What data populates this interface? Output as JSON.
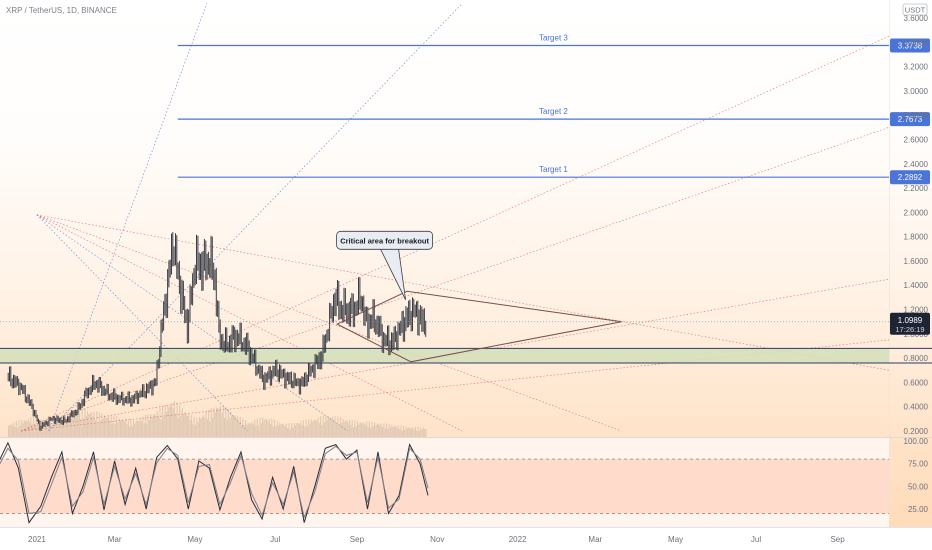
{
  "header": {
    "title": "XRP / TetherUS, 1D, BINANCE"
  },
  "colors": {
    "target_line": "#4a74d8",
    "support_band_fill": "#d4dfb8",
    "support_band_line": "#2c3a66",
    "price_label_bg": "#1e2433",
    "target_label_bg": "#4a74d8",
    "candle_color": "#3a3d45",
    "fib_red": "#e06a6a",
    "fib_blue": "#5a7fd0",
    "triangle_line": "#7a4e4a",
    "stoch_band_fill": "#ffc6b0"
  },
  "chart_data": [
    {
      "type": "line",
      "title": "XRP / TetherUS, 1D, BINANCE",
      "unit_label": "USDT",
      "y_axis": {
        "ticks": [
          "3.6000",
          "3.4000",
          "3.2000",
          "3.0000",
          "2.8000",
          "2.6000",
          "2.4000",
          "2.2000",
          "2.0000",
          "1.8000",
          "1.6000",
          "1.4000",
          "1.2000",
          "1.0000",
          "0.8000",
          "0.6000",
          "0.4000",
          "0.2000"
        ],
        "range": [
          0.15,
          3.72
        ]
      },
      "x_axis": {
        "ticks": [
          "2021",
          "Mar",
          "May",
          "Jul",
          "Sep",
          "Nov",
          "2022",
          "Mar",
          "May",
          "Jul",
          "Sep"
        ],
        "range": [
          "2020-12-04",
          "2022-10-10"
        ]
      },
      "last_price": {
        "value": "1.0989",
        "countdown": "17:26:19"
      },
      "close_series": {
        "x": [
          "2020-12-10",
          "2020-12-20",
          "2020-12-28",
          "2021-01-03",
          "2021-01-12",
          "2021-01-22",
          "2021-02-01",
          "2021-02-07",
          "2021-02-14",
          "2021-02-24",
          "2021-03-05",
          "2021-03-15",
          "2021-03-25",
          "2021-04-01",
          "2021-04-06",
          "2021-04-10",
          "2021-04-14",
          "2021-04-20",
          "2021-04-25",
          "2021-05-01",
          "2021-05-06",
          "2021-05-12",
          "2021-05-16",
          "2021-05-19",
          "2021-05-23",
          "2021-06-01",
          "2021-06-10",
          "2021-06-20",
          "2021-06-22",
          "2021-07-01",
          "2021-07-10",
          "2021-07-20",
          "2021-07-28",
          "2021-08-05",
          "2021-08-10",
          "2021-08-15",
          "2021-08-20",
          "2021-08-28",
          "2021-09-04",
          "2021-09-07",
          "2021-09-14",
          "2021-09-21",
          "2021-09-28",
          "2021-10-04",
          "2021-10-10",
          "2021-10-15",
          "2021-10-20",
          "2021-10-24"
        ],
        "y": [
          0.65,
          0.55,
          0.4,
          0.23,
          0.3,
          0.28,
          0.38,
          0.5,
          0.6,
          0.5,
          0.46,
          0.46,
          0.54,
          0.6,
          1.1,
          1.4,
          1.75,
          1.35,
          1.05,
          1.6,
          1.55,
          1.6,
          1.45,
          1.0,
          0.9,
          0.98,
          0.88,
          0.65,
          0.62,
          0.7,
          0.63,
          0.58,
          0.7,
          0.82,
          1.05,
          1.3,
          1.2,
          1.18,
          1.3,
          1.1,
          1.12,
          0.95,
          0.93,
          1.05,
          1.15,
          1.18,
          1.1,
          1.1
        ]
      },
      "volume_series": {
        "x": [
          "2020-12-10",
          "2020-12-28",
          "2021-01-12",
          "2021-02-01",
          "2021-02-24",
          "2021-03-15",
          "2021-04-01",
          "2021-04-14",
          "2021-05-01",
          "2021-05-19",
          "2021-06-10",
          "2021-06-22",
          "2021-07-10",
          "2021-08-10",
          "2021-08-28",
          "2021-09-14",
          "2021-10-04",
          "2021-10-24"
        ],
        "values": [
          0.35,
          0.55,
          0.45,
          0.8,
          0.6,
          0.45,
          0.7,
          1.0,
          0.5,
          0.9,
          0.4,
          0.55,
          0.35,
          0.6,
          0.45,
          0.4,
          0.3,
          0.25
        ]
      },
      "annotations": [
        {
          "type": "target",
          "label": "Target 3",
          "price": "3.3738",
          "price_value": 3.3738,
          "x_start": "2021-04-18",
          "x_end": "2022-10-10"
        },
        {
          "type": "target",
          "label": "Target 2",
          "price": "2.7673",
          "price_value": 2.7673,
          "x_start": "2021-04-18",
          "x_end": "2022-10-10"
        },
        {
          "type": "target",
          "label": "Target 1",
          "price": "2.2892",
          "price_value": 2.2892,
          "x_start": "2021-04-18",
          "x_end": "2022-10-10"
        },
        {
          "type": "callout",
          "label": "Critical area for breakout",
          "x": "2021-09-22",
          "y": 1.77,
          "points_to": [
            "2021-10-08",
            1.28
          ]
        },
        {
          "type": "zone",
          "y_range": [
            0.76,
            0.88
          ]
        },
        {
          "type": "triangle",
          "points": [
            [
              "2021-08-17",
              1.08
            ],
            [
              "2021-10-09",
              1.35
            ],
            [
              "2022-03-21",
              1.1
            ],
            [
              "2021-10-12",
              0.77
            ]
          ]
        }
      ],
      "fan_lines": [
        {
          "color": "red",
          "points": [
            [
              "2021-01-01",
              1.98
            ],
            [
              "2022-10-10",
              0.7
            ]
          ]
        },
        {
          "color": "red",
          "points": [
            [
              "2021-01-01",
              1.98
            ],
            [
              "2022-03-21",
              0.2
            ]
          ]
        },
        {
          "color": "red",
          "points": [
            [
              "2021-01-01",
              1.98
            ],
            [
              "2021-11-20",
              0.2
            ]
          ]
        },
        {
          "color": "blue",
          "points": [
            [
              "2021-01-01",
              1.98
            ],
            [
              "2021-08-25",
              0.2
            ]
          ]
        },
        {
          "color": "blue",
          "points": [
            [
              "2021-01-01",
              1.98
            ],
            [
              "2021-06-10",
              0.2
            ]
          ]
        },
        {
          "color": "red",
          "points": [
            [
              "2020-12-20",
              0.2
            ],
            [
              "2022-10-10",
              3.45
            ]
          ]
        },
        {
          "color": "red",
          "points": [
            [
              "2020-12-20",
              0.2
            ],
            [
              "2022-10-10",
              2.7
            ]
          ]
        },
        {
          "color": "red",
          "points": [
            [
              "2020-12-20",
              0.2
            ],
            [
              "2022-10-10",
              1.45
            ]
          ]
        },
        {
          "color": "red",
          "points": [
            [
              "2020-12-20",
              0.2
            ],
            [
              "2022-10-10",
              0.95
            ]
          ]
        },
        {
          "color": "blue",
          "points": [
            [
              "2021-01-10",
              0.2
            ],
            [
              "2021-11-20",
              3.72
            ]
          ]
        },
        {
          "color": "blue",
          "points": [
            [
              "2021-01-10",
              0.2
            ],
            [
              "2021-05-10",
              3.72
            ]
          ]
        }
      ]
    },
    {
      "type": "line",
      "y_axis": {
        "ticks": [
          "100.00",
          "75.00",
          "50.00",
          "25.00"
        ],
        "range": [
          0,
          100
        ],
        "overbought": 80,
        "oversold": 20
      },
      "x_axis": {
        "range": [
          "2020-12-04",
          "2022-10-10"
        ]
      },
      "series": [
        {
          "x": [
            "2020-12-04",
            "2020-12-10",
            "2020-12-18",
            "2020-12-26",
            "2021-01-04",
            "2021-01-12",
            "2021-01-20",
            "2021-01-28",
            "2021-02-05",
            "2021-02-13",
            "2021-02-21",
            "2021-03-01",
            "2021-03-09",
            "2021-03-17",
            "2021-03-25",
            "2021-04-02",
            "2021-04-10",
            "2021-04-18",
            "2021-04-26",
            "2021-05-04",
            "2021-05-12",
            "2021-05-20",
            "2021-05-28",
            "2021-06-05",
            "2021-06-13",
            "2021-06-21",
            "2021-06-29",
            "2021-07-07",
            "2021-07-15",
            "2021-07-23",
            "2021-07-31",
            "2021-08-08",
            "2021-08-16",
            "2021-08-24",
            "2021-09-01",
            "2021-09-09",
            "2021-09-17",
            "2021-09-25",
            "2021-10-03",
            "2021-10-11",
            "2021-10-19",
            "2021-10-25"
          ],
          "values": [
            80,
            98,
            70,
            10,
            28,
            60,
            88,
            20,
            50,
            88,
            24,
            78,
            30,
            70,
            25,
            82,
            95,
            80,
            25,
            78,
            70,
            24,
            60,
            88,
            35,
            14,
            60,
            25,
            72,
            10,
            50,
            92,
            96,
            80,
            90,
            25,
            88,
            20,
            40,
            96,
            75,
            40
          ]
        },
        {
          "x": [
            "2020-12-04",
            "2020-12-10",
            "2020-12-18",
            "2020-12-26",
            "2021-01-04",
            "2021-01-12",
            "2021-01-20",
            "2021-01-28",
            "2021-02-05",
            "2021-02-13",
            "2021-02-21",
            "2021-03-01",
            "2021-03-09",
            "2021-03-17",
            "2021-03-25",
            "2021-04-02",
            "2021-04-10",
            "2021-04-18",
            "2021-04-26",
            "2021-05-04",
            "2021-05-12",
            "2021-05-20",
            "2021-05-28",
            "2021-06-05",
            "2021-06-13",
            "2021-06-21",
            "2021-06-29",
            "2021-07-07",
            "2021-07-15",
            "2021-07-23",
            "2021-07-31",
            "2021-08-08",
            "2021-08-16",
            "2021-08-24",
            "2021-09-01",
            "2021-09-09",
            "2021-09-17",
            "2021-09-25",
            "2021-10-03",
            "2021-10-11",
            "2021-10-19",
            "2021-10-25"
          ],
          "values": [
            75,
            92,
            78,
            20,
            22,
            52,
            82,
            28,
            44,
            82,
            30,
            72,
            36,
            64,
            30,
            76,
            92,
            84,
            32,
            72,
            74,
            30,
            54,
            84,
            42,
            18,
            54,
            30,
            66,
            16,
            44,
            86,
            94,
            84,
            88,
            32,
            82,
            26,
            36,
            92,
            80,
            48
          ]
        }
      ]
    }
  ]
}
